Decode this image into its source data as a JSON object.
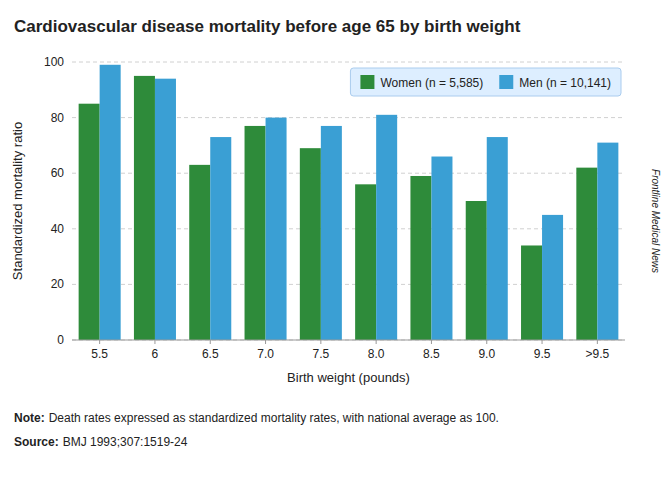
{
  "chart_data": {
    "type": "bar",
    "title": "Cardiovascular disease mortality before age 65 by birth weight",
    "xlabel": "Birth weight (pounds)",
    "ylabel": "Standardized mortality ratio",
    "categories": [
      "5.5",
      "6",
      "6.5",
      "7.0",
      "7.5",
      "8.0",
      "8.5",
      "9.0",
      "9.5",
      ">9.5"
    ],
    "series": [
      {
        "name": "Women (n = 5,585)",
        "color": "#2e8b3a",
        "values": [
          85,
          95,
          63,
          77,
          69,
          56,
          59,
          50,
          34,
          62
        ]
      },
      {
        "name": "Men (n = 10,141)",
        "color": "#3a9fd4",
        "values": [
          99,
          94,
          73,
          80,
          77,
          81,
          66,
          73,
          45,
          71
        ]
      }
    ],
    "ylim": [
      0,
      100
    ],
    "yticks": [
      0,
      20,
      40,
      60,
      80,
      100
    ],
    "grid": true,
    "legend": "upper right",
    "annotations": [
      {
        "label": "Note:",
        "text": "Death rates expressed as standardized mortality rates, with national average as 100."
      },
      {
        "label": "Source:",
        "text": "BMJ 1993;307:1519-24"
      }
    ],
    "watermark": "Frontline Medical News"
  }
}
